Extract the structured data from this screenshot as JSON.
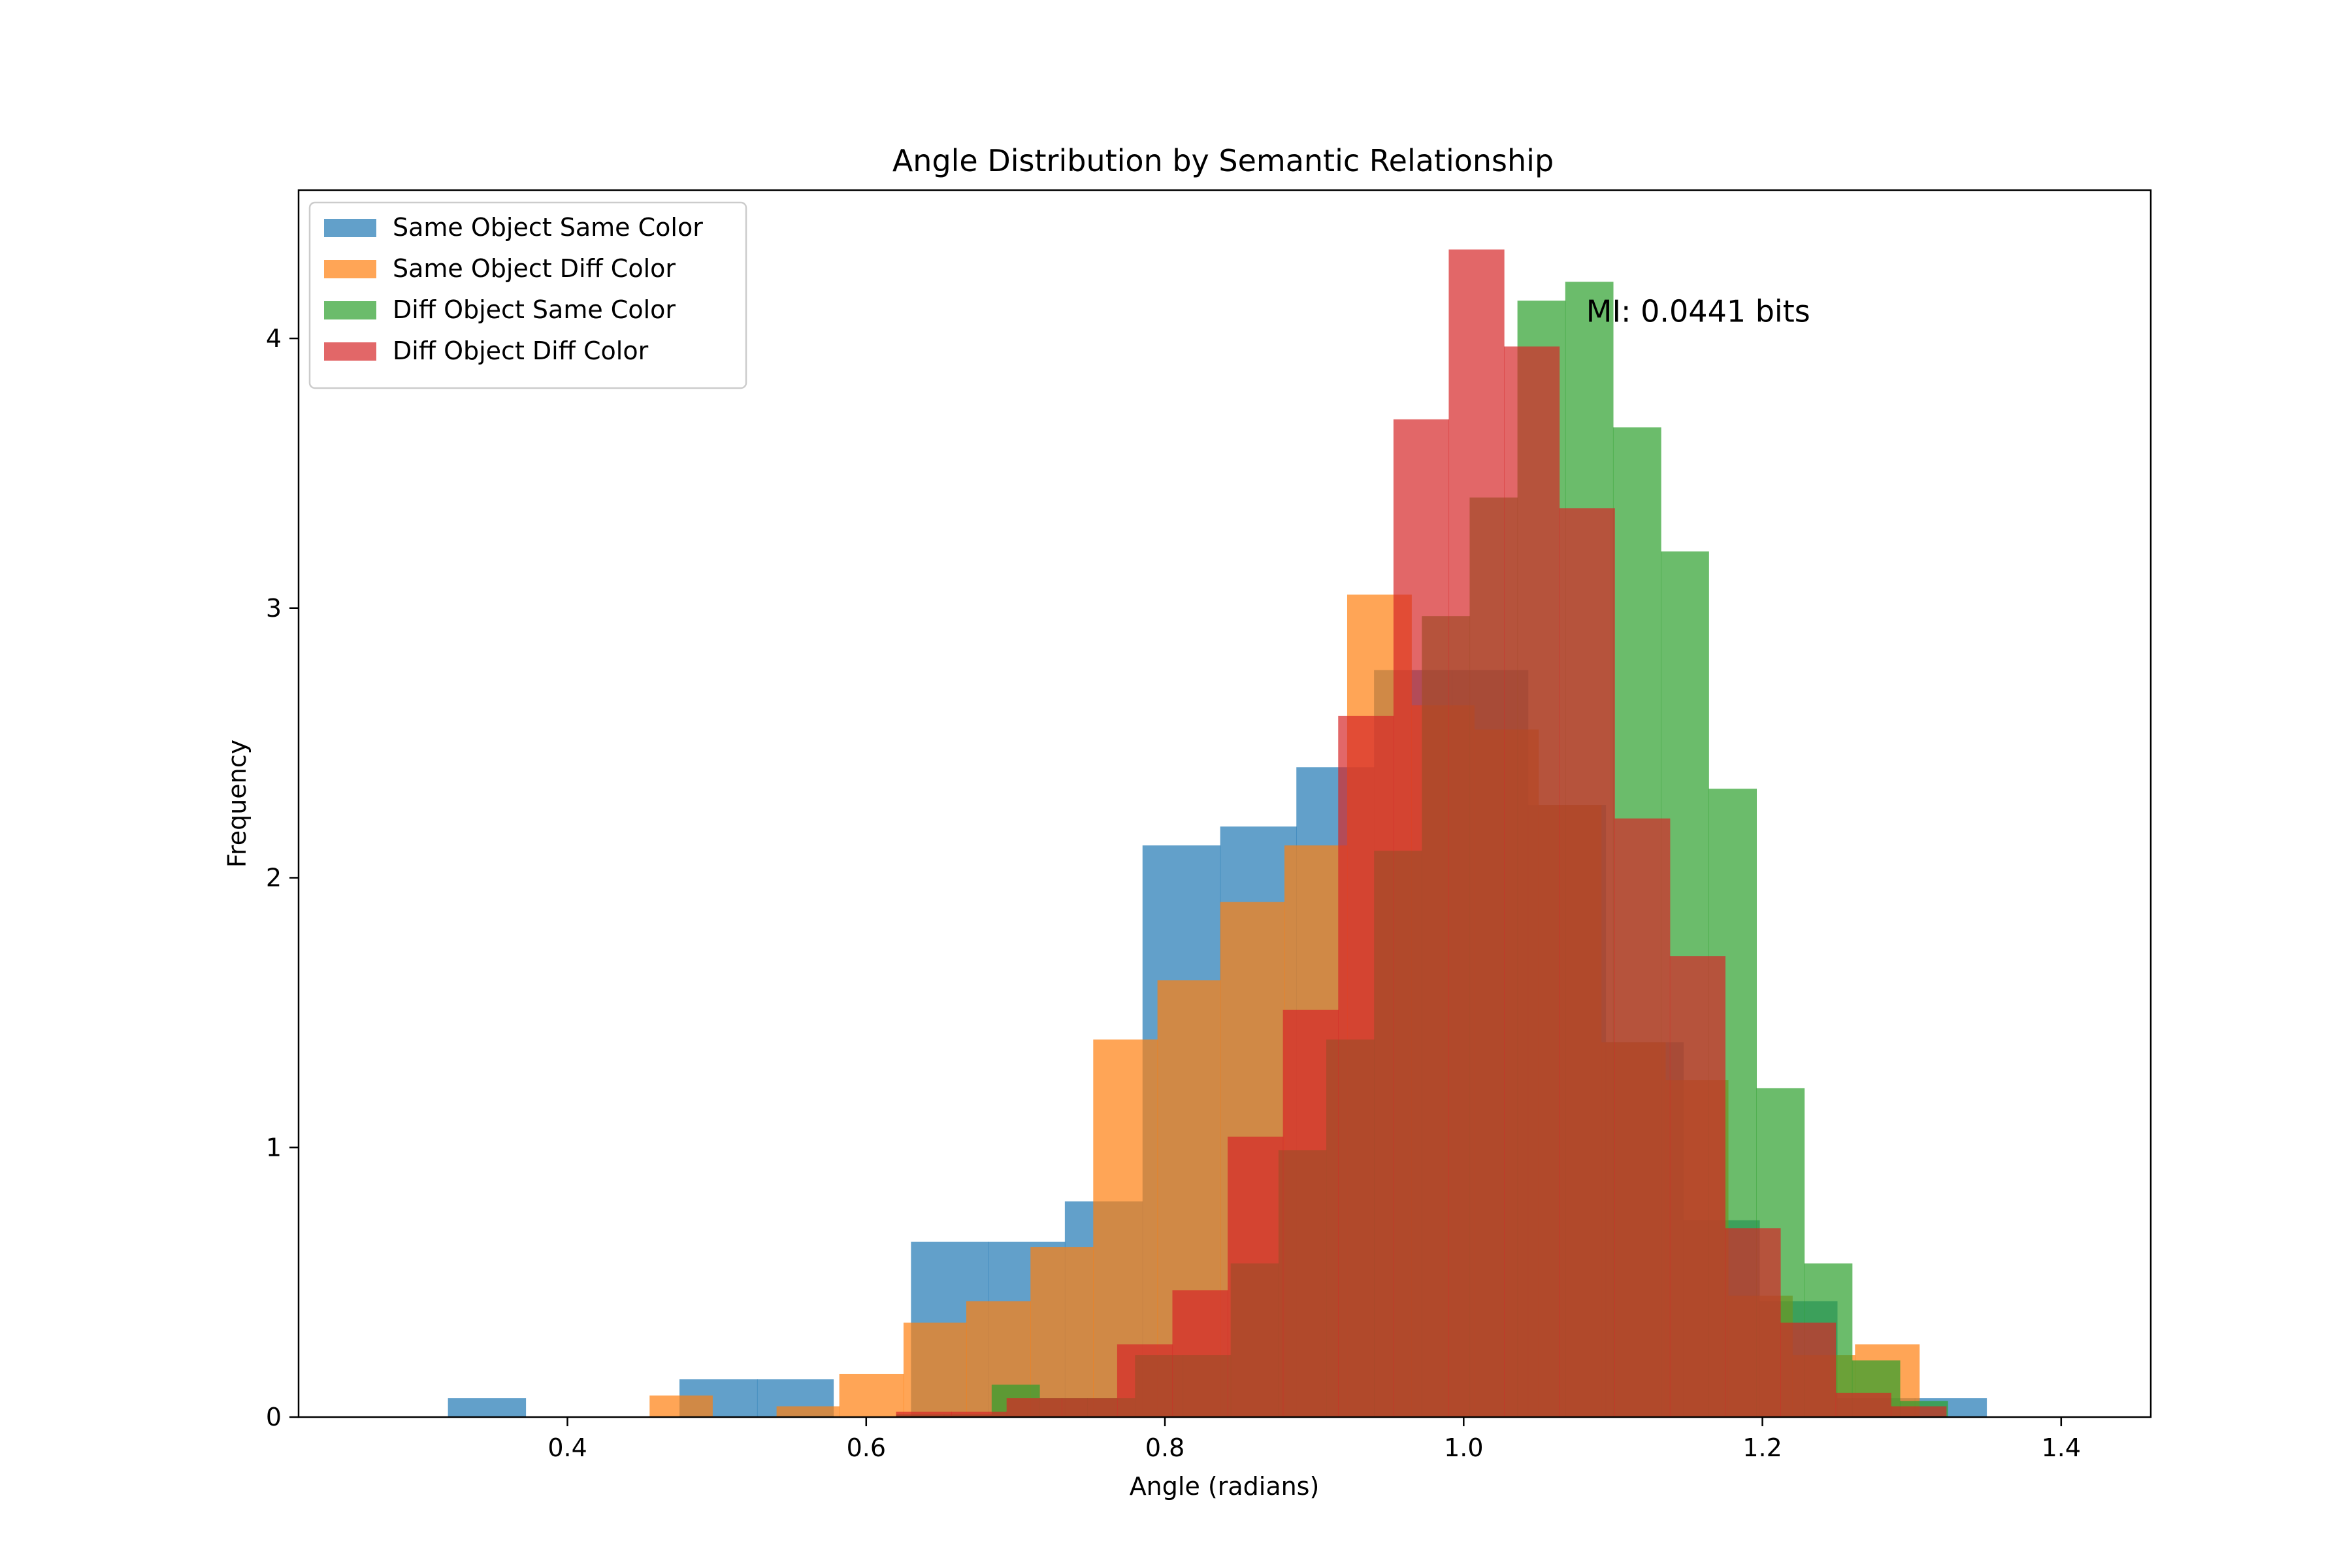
{
  "chart_data": {
    "type": "bar",
    "title": "Angle Distribution by Semantic Relationship",
    "xlabel": "Angle (radians)",
    "ylabel": "Frequency",
    "xlim": [
      0.22,
      1.46
    ],
    "ylim": [
      0,
      4.55
    ],
    "xticks": [
      0.4,
      0.6,
      0.8,
      1.0,
      1.2,
      1.4
    ],
    "yticks": [
      0,
      1,
      2,
      3,
      4
    ],
    "grid": false,
    "legend_position": "top-left",
    "annotation": {
      "text": "MI: 0.0441 bits",
      "x": 1.082,
      "y": 4.1
    },
    "series": [
      {
        "name": "Same Object Same Color",
        "color": "#1f77b4",
        "opacity": 0.7,
        "bins": [
          [
            0.32,
            0.372,
            0.07
          ],
          [
            0.372,
            0.423,
            0
          ],
          [
            0.423,
            0.475,
            0
          ],
          [
            0.475,
            0.527,
            0.14
          ],
          [
            0.527,
            0.578,
            0.14
          ],
          [
            0.578,
            0.63,
            0
          ],
          [
            0.63,
            0.682,
            0.65
          ],
          [
            0.682,
            0.733,
            0.65
          ],
          [
            0.733,
            0.785,
            0.8
          ],
          [
            0.785,
            0.837,
            2.12
          ],
          [
            0.837,
            0.888,
            2.19
          ],
          [
            0.888,
            0.94,
            2.41
          ],
          [
            0.94,
            0.992,
            2.77
          ],
          [
            0.992,
            1.043,
            2.77
          ],
          [
            1.043,
            1.095,
            2.27
          ],
          [
            1.095,
            1.147,
            1.39
          ],
          [
            1.147,
            1.198,
            0.73
          ],
          [
            1.198,
            1.25,
            0.43
          ],
          [
            1.25,
            1.302,
            0.07
          ],
          [
            1.302,
            1.35,
            0.07
          ]
        ]
      },
      {
        "name": "Same Object Diff Color",
        "color": "#ff7f0e",
        "opacity": 0.7,
        "bins": [
          [
            0.455,
            0.497,
            0.08
          ],
          [
            0.497,
            0.54,
            0
          ],
          [
            0.54,
            0.582,
            0.04
          ],
          [
            0.582,
            0.625,
            0.16
          ],
          [
            0.625,
            0.667,
            0.35
          ],
          [
            0.667,
            0.71,
            0.43
          ],
          [
            0.71,
            0.752,
            0.63
          ],
          [
            0.752,
            0.795,
            1.4
          ],
          [
            0.795,
            0.837,
            1.62
          ],
          [
            0.837,
            0.88,
            1.91
          ],
          [
            0.88,
            0.922,
            2.12
          ],
          [
            0.922,
            0.965,
            3.05
          ],
          [
            0.965,
            1.007,
            2.64
          ],
          [
            1.007,
            1.05,
            2.55
          ],
          [
            1.05,
            1.092,
            2.27
          ],
          [
            1.092,
            1.135,
            1.39
          ],
          [
            1.135,
            1.177,
            1.25
          ],
          [
            1.177,
            1.22,
            0.45
          ],
          [
            1.22,
            1.262,
            0.23
          ],
          [
            1.262,
            1.305,
            0.27
          ]
        ]
      },
      {
        "name": "Diff Object Same Color",
        "color": "#2ca02c",
        "opacity": 0.7,
        "bins": [
          [
            0.62,
            0.652,
            0.01
          ],
          [
            0.652,
            0.684,
            0.01
          ],
          [
            0.684,
            0.716,
            0.12
          ],
          [
            0.716,
            0.748,
            0.07
          ],
          [
            0.748,
            0.78,
            0.07
          ],
          [
            0.78,
            0.812,
            0.23
          ],
          [
            0.812,
            0.844,
            0.23
          ],
          [
            0.844,
            0.876,
            0.57
          ],
          [
            0.876,
            0.908,
            0.99
          ],
          [
            0.908,
            0.94,
            1.4
          ],
          [
            0.94,
            0.972,
            2.1
          ],
          [
            0.972,
            1.004,
            2.97
          ],
          [
            1.004,
            1.036,
            3.41
          ],
          [
            1.036,
            1.068,
            4.14
          ],
          [
            1.068,
            1.1,
            4.21
          ],
          [
            1.1,
            1.132,
            3.67
          ],
          [
            1.132,
            1.164,
            3.21
          ],
          [
            1.164,
            1.196,
            2.33
          ],
          [
            1.196,
            1.228,
            1.22
          ],
          [
            1.228,
            1.26,
            0.57
          ],
          [
            1.26,
            1.292,
            0.21
          ],
          [
            1.292,
            1.324,
            0.06
          ]
        ]
      },
      {
        "name": "Diff Object Diff Color",
        "color": "#d62728",
        "opacity": 0.7,
        "bins": [
          [
            0.62,
            0.657,
            0.02
          ],
          [
            0.657,
            0.694,
            0.02
          ],
          [
            0.694,
            0.731,
            0.07
          ],
          [
            0.731,
            0.768,
            0.07
          ],
          [
            0.768,
            0.805,
            0.27
          ],
          [
            0.805,
            0.842,
            0.47
          ],
          [
            0.842,
            0.879,
            1.04
          ],
          [
            0.879,
            0.916,
            1.51
          ],
          [
            0.916,
            0.953,
            2.6
          ],
          [
            0.953,
            0.99,
            3.7
          ],
          [
            0.99,
            1.027,
            4.33
          ],
          [
            1.027,
            1.064,
            3.97
          ],
          [
            1.064,
            1.101,
            3.37
          ],
          [
            1.101,
            1.138,
            2.22
          ],
          [
            1.138,
            1.175,
            1.71
          ],
          [
            1.175,
            1.212,
            0.7
          ],
          [
            1.212,
            1.249,
            0.35
          ],
          [
            1.249,
            1.286,
            0.09
          ],
          [
            1.286,
            1.323,
            0.04
          ]
        ]
      }
    ]
  }
}
